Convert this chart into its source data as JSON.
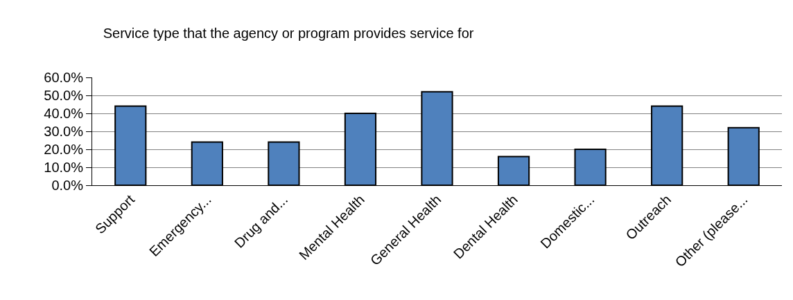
{
  "chart_data": {
    "type": "bar",
    "title": "Service type that the agency or program provides service for",
    "categories": [
      "Support",
      "Emergency...",
      "Drug and...",
      "Mental Health",
      "General Health",
      "Dental Health",
      "Domestic...",
      "Outreach",
      "Other (please..."
    ],
    "values": [
      44,
      24,
      24,
      40,
      52,
      16,
      20,
      44,
      32
    ],
    "color": "#4f81bd",
    "ylim": [
      0,
      60
    ],
    "yticks": [
      {
        "value": 0,
        "label": "0.0%"
      },
      {
        "value": 10,
        "label": "10.0%"
      },
      {
        "value": 20,
        "label": "20.0%"
      },
      {
        "value": 30,
        "label": "30.0%"
      },
      {
        "value": 40,
        "label": "40.0%"
      },
      {
        "value": 50,
        "label": "50.0%"
      },
      {
        "value": 60,
        "label": "60.0%"
      }
    ],
    "grid": "y",
    "legend": false
  }
}
